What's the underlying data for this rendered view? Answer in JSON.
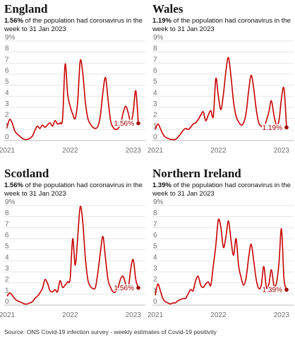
{
  "source": "Source: ONS Covid-19 infection survey - weekly estimates of Covid-19 positivity",
  "colors": {
    "line": "#c70000",
    "grid": "#e6e6e6",
    "text": "#121212",
    "muted": "#707070",
    "endlabel": "#a00000"
  },
  "chart_data": [
    {
      "type": "line",
      "title": "England",
      "subtitle_value": "1.56%",
      "subtitle_rest": " of the population had coronavirus in the week to 31 Jan 2023",
      "end_label": "1.56%",
      "ylim": [
        0,
        9
      ],
      "y_ticks": [
        "0",
        "1",
        "2",
        "3",
        "4",
        "5",
        "6",
        "7",
        "8",
        "9%"
      ],
      "x_ticks": [
        "2021",
        "2022",
        "2023"
      ],
      "x_ticks_years": [
        2021.0,
        2022.0,
        2023.0
      ],
      "xlim": [
        2021.0,
        2023.08
      ],
      "x": [
        2021.0,
        2021.04,
        2021.08,
        2021.12,
        2021.16,
        2021.2,
        2021.24,
        2021.28,
        2021.32,
        2021.36,
        2021.4,
        2021.44,
        2021.48,
        2021.52,
        2021.56,
        2021.6,
        2021.64,
        2021.68,
        2021.72,
        2021.76,
        2021.8,
        2021.84,
        2021.88,
        2021.92,
        2021.96,
        2022.0,
        2022.04,
        2022.08,
        2022.12,
        2022.16,
        2022.2,
        2022.24,
        2022.28,
        2022.32,
        2022.36,
        2022.4,
        2022.44,
        2022.48,
        2022.52,
        2022.56,
        2022.6,
        2022.64,
        2022.68,
        2022.72,
        2022.76,
        2022.8,
        2022.84,
        2022.88,
        2022.92,
        2022.96,
        2023.0,
        2023.04,
        2023.08
      ],
      "y": [
        1.2,
        1.9,
        1.6,
        0.9,
        0.6,
        0.4,
        0.2,
        0.1,
        0.1,
        0.2,
        0.4,
        0.9,
        1.3,
        1.1,
        1.4,
        1.2,
        1.4,
        1.6,
        1.3,
        1.8,
        1.5,
        1.6,
        2.0,
        6.9,
        4.2,
        3.1,
        2.4,
        2.0,
        3.6,
        7.2,
        6.1,
        3.5,
        2.0,
        1.5,
        1.2,
        1.1,
        1.3,
        2.3,
        4.4,
        5.7,
        3.7,
        1.8,
        1.2,
        1.0,
        1.1,
        1.5,
        2.5,
        3.1,
        2.5,
        1.6,
        2.6,
        4.5,
        1.56
      ]
    },
    {
      "type": "line",
      "title": "Wales",
      "subtitle_value": "1.19%",
      "subtitle_rest": " of the population had coronavirus in the week to 31 Jan 2023",
      "end_label": "1.19%",
      "ylim": [
        0,
        9
      ],
      "y_ticks": [
        "0",
        "1",
        "2",
        "3",
        "4",
        "5",
        "6",
        "7",
        "8",
        "9%"
      ],
      "x_ticks": [
        "2021",
        "2022",
        "2023"
      ],
      "x_ticks_years": [
        2021.0,
        2022.0,
        2023.0
      ],
      "xlim": [
        2021.0,
        2023.08
      ],
      "x": [
        2021.0,
        2021.04,
        2021.08,
        2021.12,
        2021.16,
        2021.2,
        2021.24,
        2021.28,
        2021.32,
        2021.36,
        2021.4,
        2021.44,
        2021.48,
        2021.52,
        2021.56,
        2021.6,
        2021.64,
        2021.68,
        2021.72,
        2021.76,
        2021.8,
        2021.84,
        2021.88,
        2021.92,
        2021.96,
        2022.0,
        2022.04,
        2022.08,
        2022.12,
        2022.16,
        2022.2,
        2022.24,
        2022.28,
        2022.32,
        2022.36,
        2022.4,
        2022.44,
        2022.48,
        2022.52,
        2022.56,
        2022.6,
        2022.64,
        2022.68,
        2022.72,
        2022.76,
        2022.8,
        2022.84,
        2022.88,
        2022.92,
        2022.96,
        2023.0,
        2023.04,
        2023.08
      ],
      "y": [
        1.0,
        1.5,
        1.1,
        0.6,
        0.3,
        0.2,
        0.1,
        0.1,
        0.1,
        0.3,
        0.6,
        0.9,
        1.1,
        1.0,
        1.2,
        1.5,
        1.6,
        1.9,
        2.3,
        2.6,
        1.8,
        2.3,
        2.7,
        2.2,
        5.6,
        4.0,
        2.8,
        4.2,
        6.3,
        7.5,
        5.8,
        3.5,
        2.2,
        1.7,
        1.4,
        1.6,
        2.5,
        4.5,
        5.9,
        4.7,
        2.8,
        1.6,
        1.3,
        1.2,
        1.8,
        2.6,
        3.6,
        2.3,
        1.4,
        1.8,
        3.8,
        4.7,
        1.19
      ]
    },
    {
      "type": "line",
      "title": "Scotland",
      "subtitle_value": "1.56%",
      "subtitle_rest": " of the population had coronavirus in the week to 31 Jan 2023",
      "end_label": "1.56%",
      "ylim": [
        0,
        9
      ],
      "y_ticks": [
        "0",
        "1",
        "2",
        "3",
        "4",
        "5",
        "6",
        "7",
        "8",
        "9%"
      ],
      "x_ticks": [
        "2021",
        "2022",
        "2023"
      ],
      "x_ticks_years": [
        2021.0,
        2022.0,
        2023.0
      ],
      "xlim": [
        2021.0,
        2023.08
      ],
      "x": [
        2021.0,
        2021.04,
        2021.08,
        2021.12,
        2021.16,
        2021.2,
        2021.24,
        2021.28,
        2021.32,
        2021.36,
        2021.4,
        2021.44,
        2021.48,
        2021.52,
        2021.56,
        2021.6,
        2021.64,
        2021.68,
        2021.72,
        2021.76,
        2021.8,
        2021.84,
        2021.88,
        2021.92,
        2021.96,
        2022.0,
        2022.04,
        2022.08,
        2022.12,
        2022.16,
        2022.2,
        2022.24,
        2022.28,
        2022.32,
        2022.36,
        2022.4,
        2022.44,
        2022.48,
        2022.52,
        2022.56,
        2022.6,
        2022.64,
        2022.68,
        2022.72,
        2022.76,
        2022.8,
        2022.84,
        2022.88,
        2022.92,
        2022.96,
        2023.0,
        2023.04,
        2023.08
      ],
      "y": [
        0.8,
        1.1,
        0.9,
        0.6,
        0.4,
        0.3,
        0.2,
        0.1,
        0.1,
        0.2,
        0.3,
        0.6,
        0.8,
        1.1,
        1.5,
        2.3,
        2.0,
        1.3,
        1.2,
        1.4,
        1.2,
        2.2,
        1.6,
        1.8,
        2.1,
        2.4,
        6.0,
        3.6,
        6.2,
        8.9,
        7.5,
        4.3,
        2.3,
        1.7,
        1.5,
        1.6,
        3.0,
        4.8,
        6.2,
        4.2,
        2.3,
        1.6,
        1.2,
        1.2,
        1.6,
        2.4,
        2.6,
        1.9,
        1.5,
        3.3,
        4.1,
        2.3,
        1.56
      ]
    },
    {
      "type": "line",
      "title": "Northern Ireland",
      "subtitle_value": "1.39%",
      "subtitle_rest": " of the population had coronavirus in the week to 31 Jan 2023",
      "end_label": "1.39%",
      "ylim": [
        0,
        9
      ],
      "y_ticks": [
        "0",
        "1",
        "2",
        "3",
        "4",
        "5",
        "6",
        "7",
        "8",
        "9%"
      ],
      "x_ticks": [
        "2021",
        "2022",
        "2023"
      ],
      "x_ticks_years": [
        2021.0,
        2022.0,
        2023.0
      ],
      "xlim": [
        2021.0,
        2023.08
      ],
      "x": [
        2021.0,
        2021.04,
        2021.08,
        2021.12,
        2021.16,
        2021.2,
        2021.24,
        2021.28,
        2021.32,
        2021.36,
        2021.4,
        2021.44,
        2021.48,
        2021.52,
        2021.56,
        2021.6,
        2021.64,
        2021.68,
        2021.72,
        2021.76,
        2021.8,
        2021.84,
        2021.88,
        2021.92,
        2021.96,
        2022.0,
        2022.04,
        2022.08,
        2022.12,
        2022.16,
        2022.2,
        2022.24,
        2022.28,
        2022.32,
        2022.36,
        2022.4,
        2022.44,
        2022.48,
        2022.52,
        2022.56,
        2022.6,
        2022.64,
        2022.68,
        2022.72,
        2022.76,
        2022.8,
        2022.84,
        2022.88,
        2022.92,
        2022.96,
        2023.0,
        2023.04,
        2023.08
      ],
      "y": [
        0.9,
        1.9,
        1.3,
        0.6,
        0.3,
        0.2,
        0.1,
        0.2,
        0.2,
        0.4,
        0.5,
        0.6,
        0.6,
        1.0,
        1.4,
        1.3,
        2.2,
        2.6,
        1.8,
        1.6,
        1.9,
        2.1,
        1.8,
        3.6,
        5.4,
        7.7,
        7.0,
        5.2,
        6.2,
        7.6,
        5.9,
        4.5,
        6.0,
        3.6,
        2.5,
        1.8,
        2.5,
        4.3,
        5.5,
        4.0,
        2.3,
        1.5,
        1.8,
        3.5,
        1.6,
        1.9,
        3.2,
        1.8,
        2.0,
        3.8,
        6.9,
        2.4,
        1.39
      ]
    }
  ]
}
